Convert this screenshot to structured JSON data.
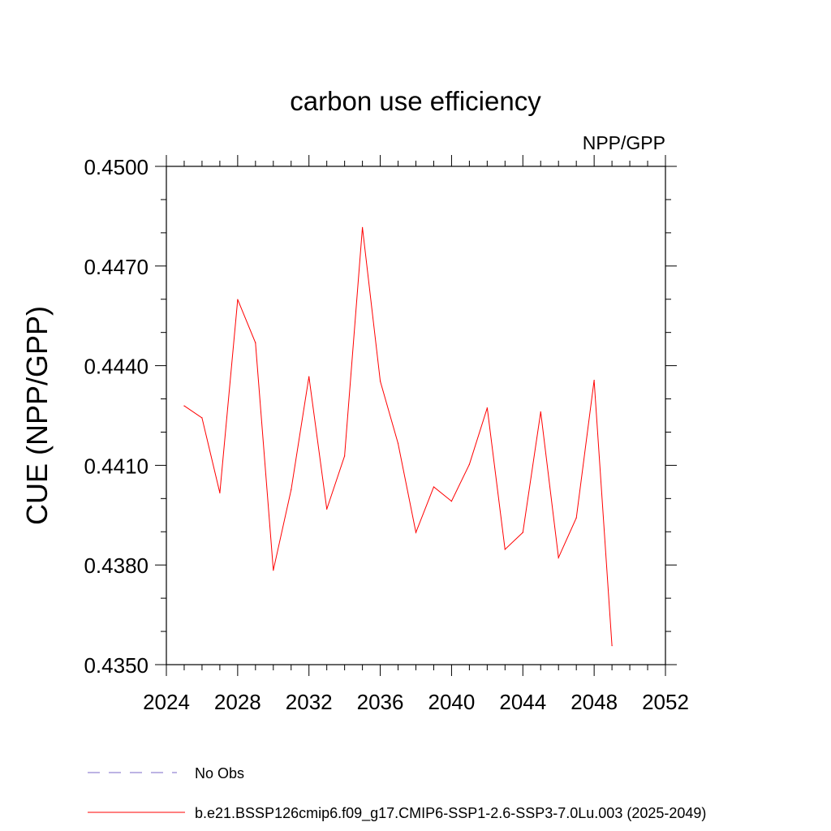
{
  "chart_data": {
    "type": "line",
    "title": "carbon use efficiency",
    "subtitle": "NPP/GPP",
    "xlabel": "",
    "ylabel": "CUE  (NPP/GPP)",
    "xlim": [
      2024,
      2052
    ],
    "ylim": [
      0.435,
      0.45
    ],
    "x_major_ticks": [
      2024,
      2028,
      2032,
      2036,
      2040,
      2044,
      2048,
      2052
    ],
    "x_tick_labels": [
      "2024",
      "2028",
      "2032",
      "2036",
      "2040",
      "2044",
      "2048",
      "2052"
    ],
    "y_major_ticks": [
      0.435,
      0.438,
      0.441,
      0.444,
      0.447,
      0.45
    ],
    "y_tick_labels": [
      "0.4350",
      "0.4380",
      "0.4410",
      "0.4440",
      "0.4470",
      "0.4500"
    ],
    "x_minor_step": 1,
    "y_minor_step": 0.001,
    "series": [
      {
        "name": "b.e21.BSSP126cmip6.f09_g17.CMIP6-SSP1-2.6-SSP3-7.0Lu.003 (2025-2049)",
        "color": "#ff0000",
        "dash": "solid",
        "x": [
          2025,
          2026,
          2027,
          2028,
          2029,
          2030,
          2031,
          2032,
          2033,
          2034,
          2035,
          2036,
          2037,
          2038,
          2039,
          2040,
          2041,
          2042,
          2043,
          2044,
          2045,
          2046,
          2047,
          2048,
          2049
        ],
        "values": [
          0.44279,
          0.44243,
          0.44017,
          0.44599,
          0.44469,
          0.43784,
          0.44027,
          0.44367,
          0.43968,
          0.44128,
          0.44816,
          0.44353,
          0.44166,
          0.43898,
          0.44035,
          0.43992,
          0.44103,
          0.44273,
          0.43847,
          0.43898,
          0.44261,
          0.43822,
          0.43942,
          0.44356,
          0.43557
        ]
      },
      {
        "name": "No Obs",
        "color": "#7b68c8",
        "dash": "dashed",
        "x": [],
        "values": []
      }
    ],
    "legend": [
      {
        "label": "No Obs",
        "color": "#7b68c8",
        "dash": "dashed"
      },
      {
        "label": "b.e21.BSSP126cmip6.f09_g17.CMIP6-SSP1-2.6-SSP3-7.0Lu.003 (2025-2049)",
        "color": "#ff0000",
        "dash": "solid"
      }
    ],
    "legend_position": "bottom-left",
    "grid": false
  }
}
